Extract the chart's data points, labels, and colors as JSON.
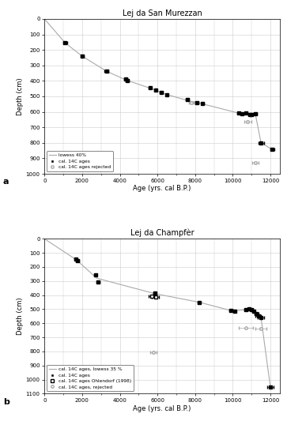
{
  "panel_a": {
    "title": "Lej da San Murezzan",
    "xlabel": "Age (yrs. cal B.P.)",
    "ylabel": "Depth (cm)",
    "xlim": [
      0,
      12500
    ],
    "ylim": [
      1000,
      0
    ],
    "xticks": [
      0,
      2000,
      4000,
      6000,
      8000,
      10000,
      12000
    ],
    "yticks": [
      0,
      100,
      200,
      300,
      400,
      500,
      600,
      700,
      800,
      900,
      1000
    ],
    "accepted_points": [
      {
        "age": 1100,
        "depth": 155,
        "age_err": 100,
        "depth_err": 5
      },
      {
        "age": 2000,
        "depth": 240,
        "age_err": 80,
        "depth_err": 5
      },
      {
        "age": 3300,
        "depth": 338,
        "age_err": 100,
        "depth_err": 5
      },
      {
        "age": 4300,
        "depth": 390,
        "age_err": 80,
        "depth_err": 5
      },
      {
        "age": 4400,
        "depth": 400,
        "age_err": 80,
        "depth_err": 5
      },
      {
        "age": 5600,
        "depth": 445,
        "age_err": 70,
        "depth_err": 5
      },
      {
        "age": 5900,
        "depth": 460,
        "age_err": 60,
        "depth_err": 5
      },
      {
        "age": 6200,
        "depth": 475,
        "age_err": 70,
        "depth_err": 5
      },
      {
        "age": 6500,
        "depth": 490,
        "age_err": 60,
        "depth_err": 5
      },
      {
        "age": 7600,
        "depth": 520,
        "age_err": 80,
        "depth_err": 5
      },
      {
        "age": 8100,
        "depth": 540,
        "age_err": 70,
        "depth_err": 5
      },
      {
        "age": 8400,
        "depth": 548,
        "age_err": 70,
        "depth_err": 5
      },
      {
        "age": 10300,
        "depth": 605,
        "age_err": 80,
        "depth_err": 5
      },
      {
        "age": 10500,
        "depth": 613,
        "age_err": 70,
        "depth_err": 5
      },
      {
        "age": 10700,
        "depth": 608,
        "age_err": 70,
        "depth_err": 5
      },
      {
        "age": 10900,
        "depth": 615,
        "age_err": 70,
        "depth_err": 5
      },
      {
        "age": 11000,
        "depth": 618,
        "age_err": 70,
        "depth_err": 5
      },
      {
        "age": 11200,
        "depth": 610,
        "age_err": 70,
        "depth_err": 5
      },
      {
        "age": 11500,
        "depth": 800,
        "age_err": 150,
        "depth_err": 5
      },
      {
        "age": 12100,
        "depth": 843,
        "age_err": 100,
        "depth_err": 5
      }
    ],
    "rejected_points": [
      {
        "age": 7800,
        "depth": 543,
        "age_err": 120,
        "depth_err": 5
      },
      {
        "age": 10800,
        "depth": 665,
        "age_err": 200,
        "depth_err": 5
      },
      {
        "age": 11200,
        "depth": 930,
        "age_err": 180,
        "depth_err": 5
      }
    ],
    "lowess_x": [
      0,
      1100,
      2000,
      3300,
      4350,
      5750,
      6350,
      7700,
      8250,
      10400,
      10750,
      11100,
      11200,
      11500,
      12100
    ],
    "lowess_y": [
      0,
      155,
      240,
      338,
      395,
      453,
      483,
      530,
      544,
      611,
      616,
      618,
      613,
      800,
      843
    ],
    "label": "a"
  },
  "panel_b": {
    "title": "Lej da Champfèr",
    "xlabel": "Age (yrs. cal B.P.)",
    "ylabel": "Depth (cm)",
    "xlim": [
      0,
      12500
    ],
    "ylim": [
      1100,
      0
    ],
    "xticks": [
      0,
      2000,
      4000,
      6000,
      8000,
      10000,
      12000
    ],
    "yticks": [
      0,
      100,
      200,
      300,
      400,
      500,
      600,
      700,
      800,
      900,
      1000,
      1100
    ],
    "accepted_points": [
      {
        "age": 1650,
        "depth": 145,
        "age_err": 70,
        "depth_err": 5
      },
      {
        "age": 1750,
        "depth": 155,
        "age_err": 70,
        "depth_err": 5
      },
      {
        "age": 2700,
        "depth": 255,
        "age_err": 70,
        "depth_err": 5
      },
      {
        "age": 2850,
        "depth": 305,
        "age_err": 70,
        "depth_err": 5
      },
      {
        "age": 5850,
        "depth": 385,
        "age_err": 70,
        "depth_err": 5
      },
      {
        "age": 8200,
        "depth": 450,
        "age_err": 70,
        "depth_err": 5
      },
      {
        "age": 9900,
        "depth": 510,
        "age_err": 70,
        "depth_err": 5
      },
      {
        "age": 10100,
        "depth": 515,
        "age_err": 70,
        "depth_err": 5
      },
      {
        "age": 10700,
        "depth": 505,
        "age_err": 70,
        "depth_err": 5
      },
      {
        "age": 10850,
        "depth": 498,
        "age_err": 70,
        "depth_err": 5
      },
      {
        "age": 11000,
        "depth": 503,
        "age_err": 70,
        "depth_err": 5
      },
      {
        "age": 11100,
        "depth": 515,
        "age_err": 70,
        "depth_err": 5
      },
      {
        "age": 11250,
        "depth": 530,
        "age_err": 100,
        "depth_err": 5
      },
      {
        "age": 11350,
        "depth": 548,
        "age_err": 130,
        "depth_err": 5
      },
      {
        "age": 11500,
        "depth": 560,
        "age_err": 160,
        "depth_err": 5
      },
      {
        "age": 12000,
        "depth": 1055,
        "age_err": 150,
        "depth_err": 5
      }
    ],
    "ohlendorf_points": [
      {
        "age": 5700,
        "depth": 410,
        "age_err": 180,
        "depth_err": 5
      },
      {
        "age": 5900,
        "depth": 415,
        "age_err": 180,
        "depth_err": 5
      }
    ],
    "rejected_points": [
      {
        "age": 5800,
        "depth": 808,
        "age_err": 170,
        "depth_err": 5
      },
      {
        "age": 10700,
        "depth": 635,
        "age_err": 370,
        "depth_err": 5
      },
      {
        "age": 11500,
        "depth": 638,
        "age_err": 280,
        "depth_err": 5
      }
    ],
    "lowess_x": [
      0,
      1700,
      2775,
      5875,
      8200,
      10000,
      10775,
      11000,
      11200,
      11350,
      11500,
      12000
    ],
    "lowess_y": [
      0,
      150,
      280,
      390,
      450,
      513,
      502,
      503,
      522,
      545,
      560,
      1055
    ],
    "label": "b"
  },
  "colors": {
    "lowess_line": "#aaaaaa",
    "accepted_marker": "#000000",
    "rejected_marker": "#aaaaaa",
    "ohlendorf_marker": "#000000",
    "background": "#ffffff",
    "grid": "#cccccc"
  }
}
